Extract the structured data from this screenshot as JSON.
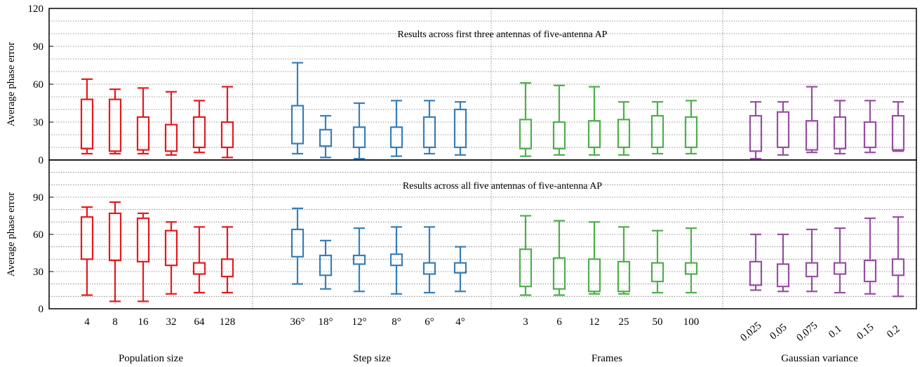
{
  "chart_data": {
    "type": "box",
    "ylabel": "Average phase error",
    "yticks": [
      0,
      30,
      60,
      90,
      120
    ],
    "grid": true,
    "groups": [
      {
        "label": "Population size",
        "color": "#e41a1c",
        "categories": [
          "4",
          "8",
          "16",
          "32",
          "64",
          "128"
        ]
      },
      {
        "label": "Step size",
        "color": "#377eb8",
        "categories": [
          "36°",
          "18°",
          "12°",
          "8°",
          "6°",
          "4°"
        ]
      },
      {
        "label": "Frames",
        "color": "#4daf4a",
        "categories": [
          "3",
          "6",
          "12",
          "25",
          "50",
          "100"
        ]
      },
      {
        "label": "Gaussian variance",
        "color": "#984ea3",
        "categories": [
          "0.025",
          "0.05",
          "0.075",
          "0.1",
          "0.15",
          "0.2"
        ]
      }
    ],
    "panels": [
      {
        "title": "Results across first three antennas of five-antenna AP",
        "ylim": [
          0,
          120
        ],
        "boxes": [
          [
            [
              5,
              9,
              48,
              64
            ],
            [
              5,
              7,
              48,
              56
            ],
            [
              5,
              8,
              34,
              57
            ],
            [
              4,
              7,
              28,
              54
            ],
            [
              6,
              10,
              34,
              47
            ],
            [
              2,
              10,
              30,
              58
            ]
          ],
          [
            [
              5,
              13,
              43,
              77
            ],
            [
              2,
              11,
              24,
              35
            ],
            [
              1,
              10,
              26,
              45
            ],
            [
              3,
              10,
              26,
              47
            ],
            [
              5,
              10,
              34,
              47
            ],
            [
              4,
              10,
              40,
              46
            ]
          ],
          [
            [
              3,
              9,
              32,
              61
            ],
            [
              4,
              9,
              30,
              59
            ],
            [
              4,
              10,
              31,
              58
            ],
            [
              4,
              10,
              32,
              46
            ],
            [
              5,
              10,
              35,
              46
            ],
            [
              5,
              10,
              34,
              47
            ]
          ],
          [
            [
              1,
              7,
              35,
              46
            ],
            [
              4,
              10,
              38,
              46
            ],
            [
              6,
              8,
              31,
              58
            ],
            [
              5,
              9,
              34,
              47
            ],
            [
              6,
              10,
              30,
              47
            ],
            [
              7,
              8,
              35,
              46
            ]
          ]
        ]
      },
      {
        "title": "Results across all five antennas of five-antenna AP",
        "ylim": [
          0,
          120
        ],
        "boxes": [
          [
            [
              11,
              40,
              74,
              82
            ],
            [
              6,
              39,
              77,
              86
            ],
            [
              6,
              38,
              73,
              77
            ],
            [
              12,
              35,
              63,
              70
            ],
            [
              13,
              28,
              37,
              66
            ],
            [
              13,
              26,
              40,
              66
            ]
          ],
          [
            [
              20,
              42,
              64,
              81
            ],
            [
              16,
              27,
              43,
              55
            ],
            [
              14,
              36,
              43,
              65
            ],
            [
              12,
              35,
              44,
              66
            ],
            [
              13,
              28,
              37,
              66
            ],
            [
              14,
              29,
              37,
              50
            ]
          ],
          [
            [
              11,
              18,
              48,
              75
            ],
            [
              11,
              16,
              41,
              71
            ],
            [
              12,
              14,
              40,
              70
            ],
            [
              12,
              14,
              38,
              66
            ],
            [
              13,
              22,
              37,
              63
            ],
            [
              13,
              28,
              37,
              65
            ]
          ],
          [
            [
              15,
              19,
              38,
              60
            ],
            [
              14,
              18,
              36,
              60
            ],
            [
              14,
              26,
              37,
              64
            ],
            [
              13,
              28,
              37,
              65
            ],
            [
              12,
              22,
              39,
              73
            ],
            [
              10,
              27,
              40,
              74
            ]
          ]
        ]
      }
    ]
  }
}
